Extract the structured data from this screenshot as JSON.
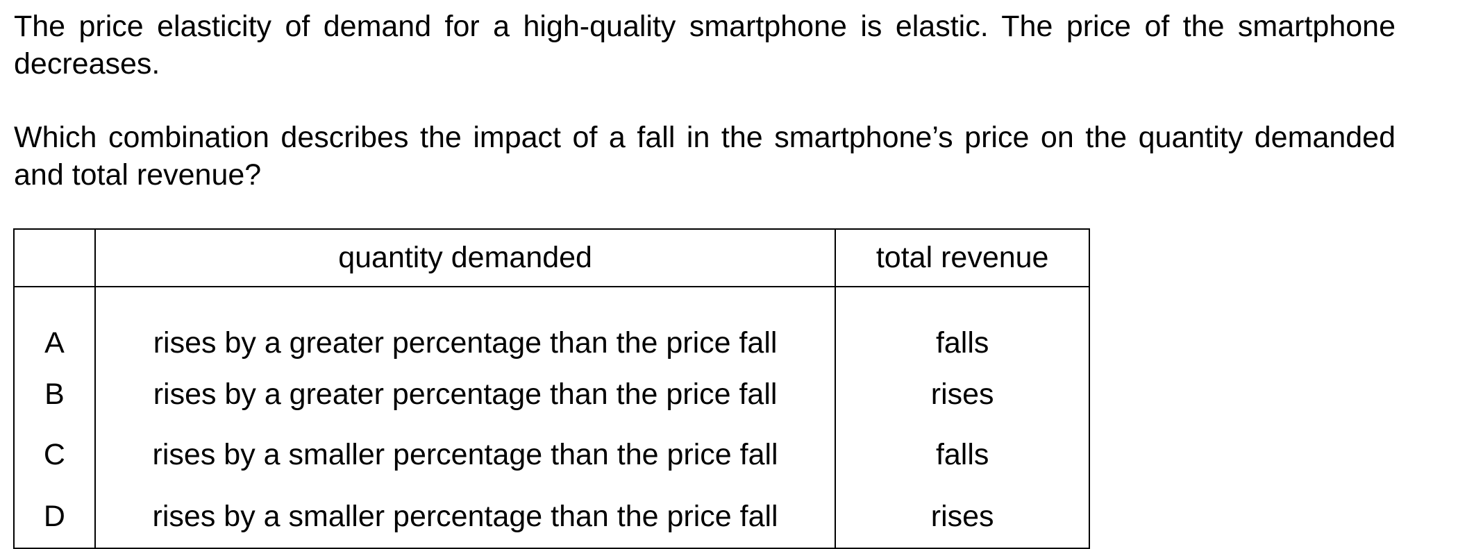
{
  "question": {
    "stem": "The price elasticity of demand for a high-quality smartphone is elastic. The price of the smartphone decreases.",
    "prompt": "Which combination describes the impact of a fall in the smartphone’s price on the quantity demanded and total revenue?"
  },
  "table": {
    "headers": {
      "letter": "",
      "quantity": "quantity demanded",
      "revenue": "total revenue"
    },
    "rows": [
      {
        "letter": "A",
        "quantity": "rises by a greater percentage than the price fall",
        "revenue": "falls"
      },
      {
        "letter": "B",
        "quantity": "rises by a greater percentage than the price fall",
        "revenue": "rises"
      },
      {
        "letter": "C",
        "quantity": "rises by a smaller percentage than the price fall",
        "revenue": "falls"
      },
      {
        "letter": "D",
        "quantity": "rises by a smaller percentage than the price fall",
        "revenue": "rises"
      }
    ]
  }
}
